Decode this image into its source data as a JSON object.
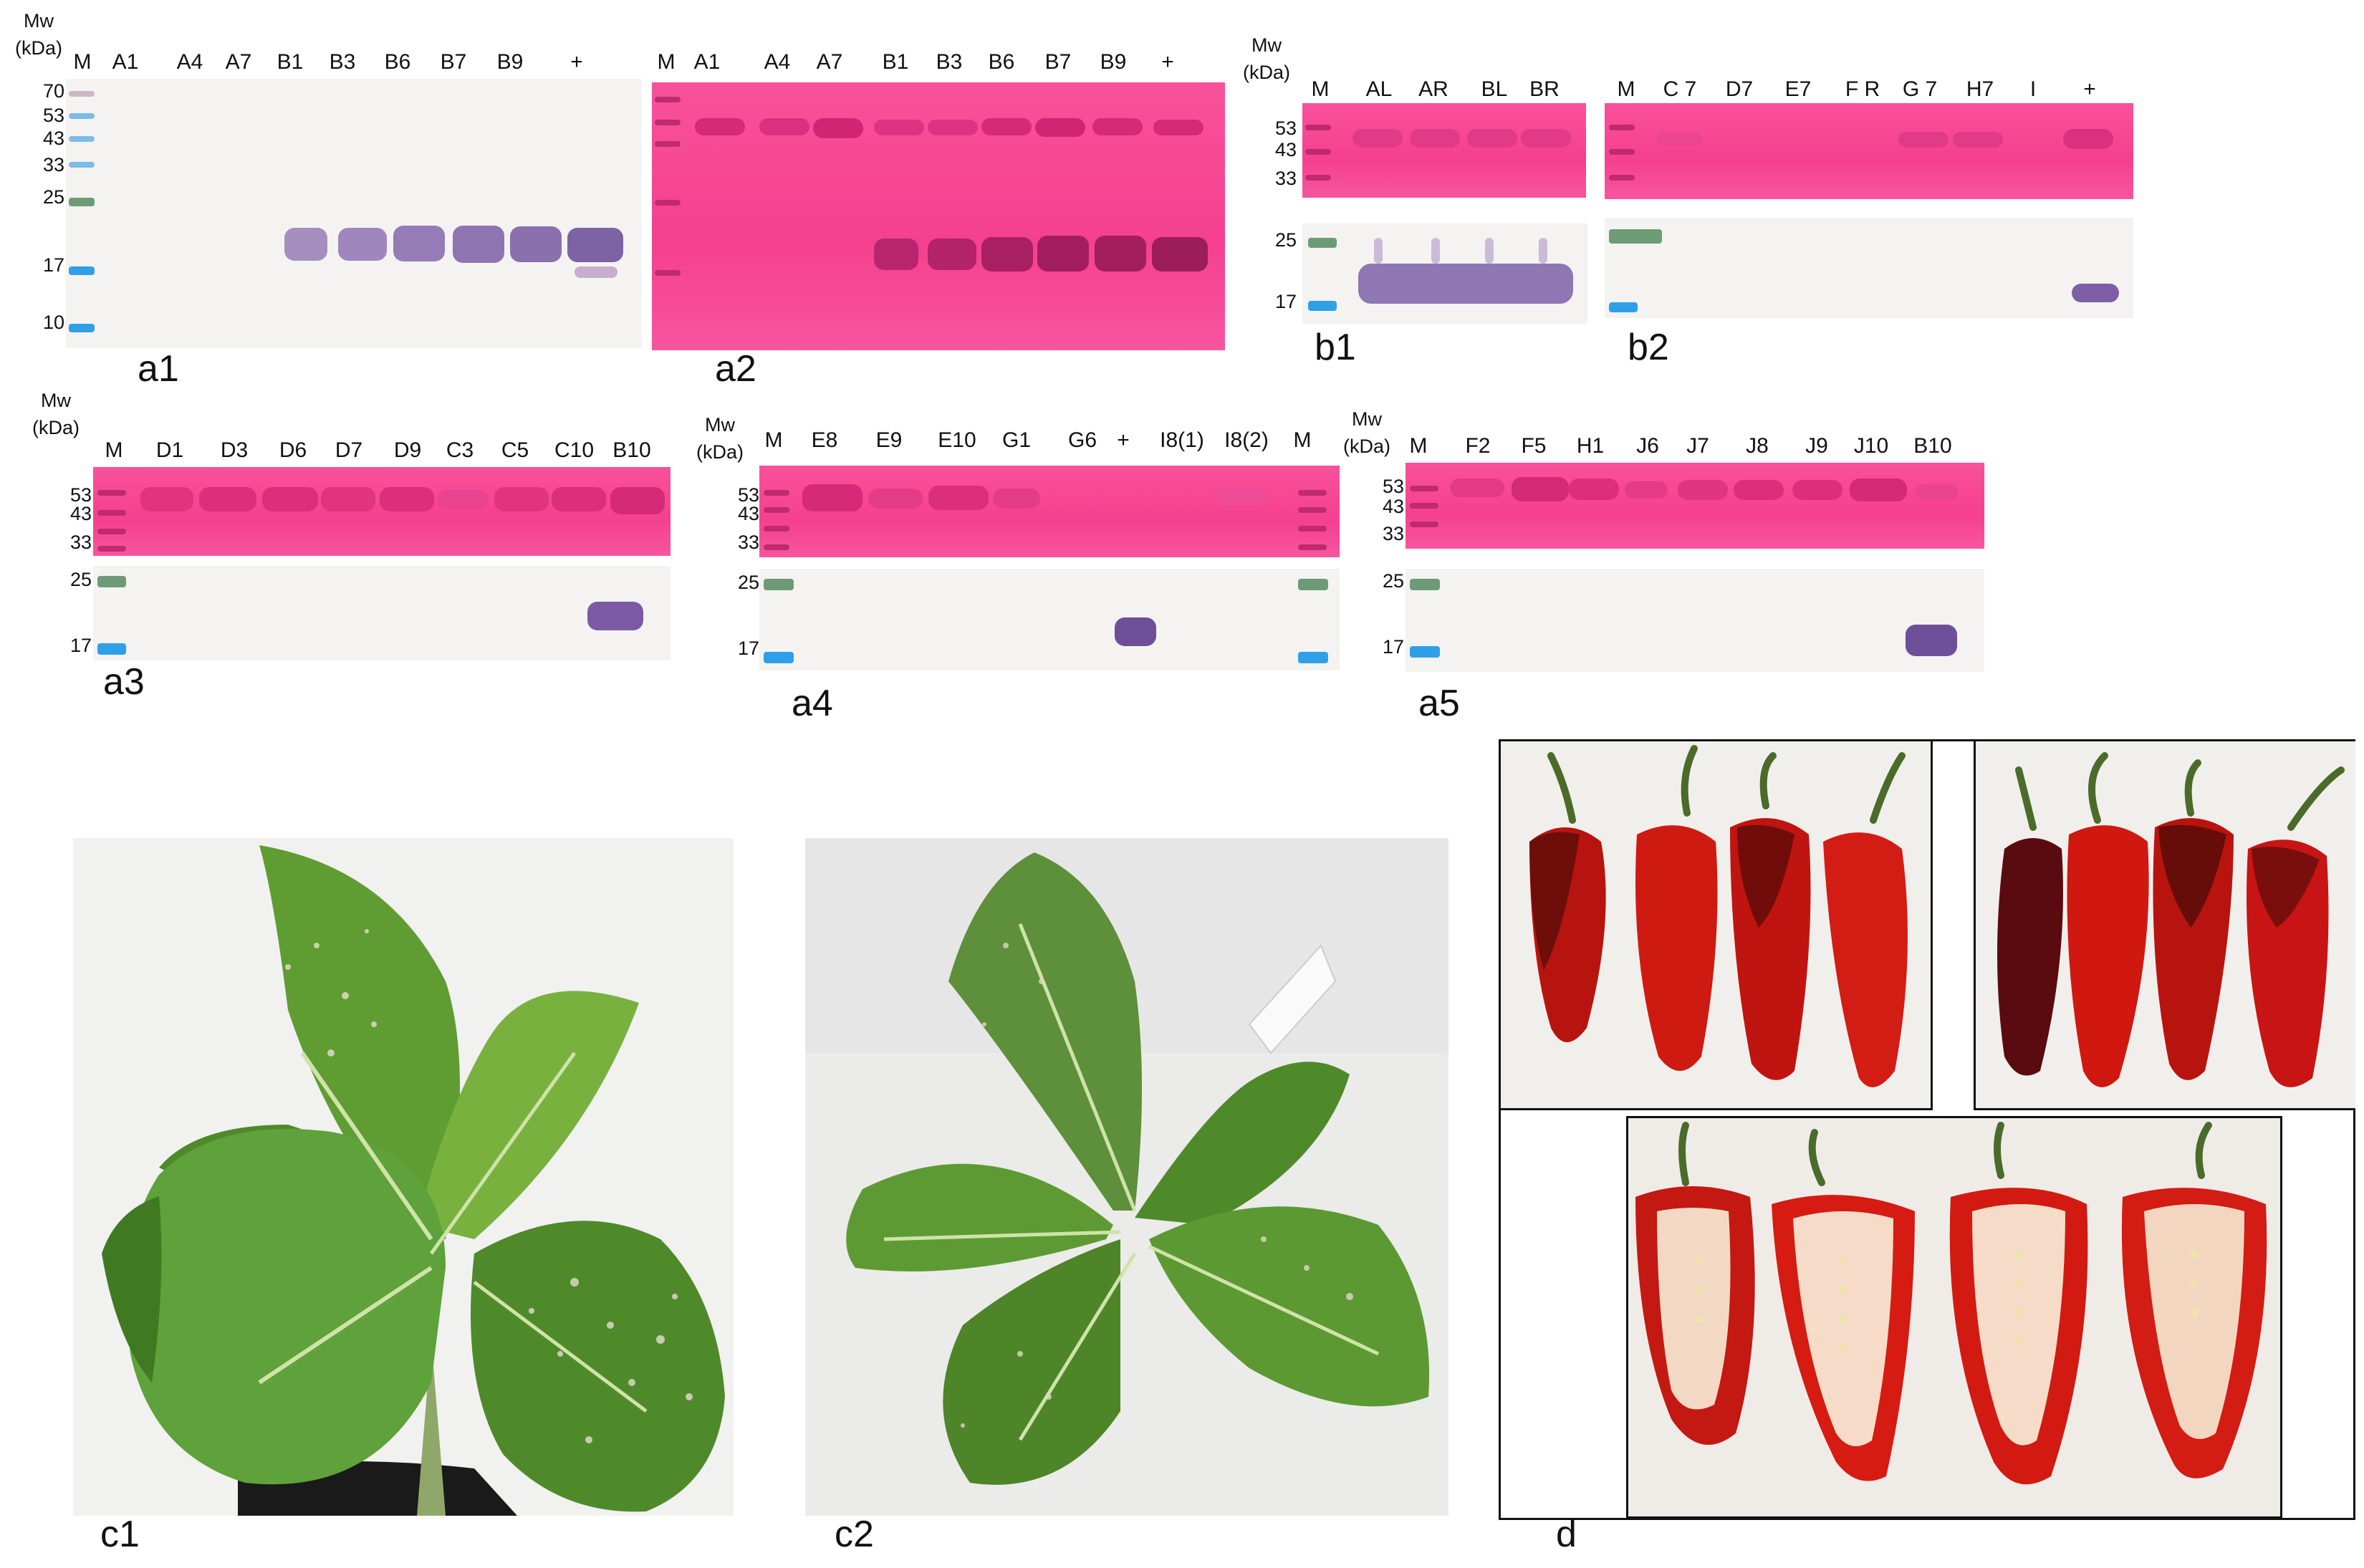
{
  "mw": "Mw",
  "kda": "(kDa)",
  "lanes": {
    "a1": [
      "M",
      "A1",
      "A4",
      "A7",
      "B1",
      "B3",
      "B6",
      "B7",
      "B9",
      "+"
    ],
    "a2": [
      "M",
      "A1",
      "A4",
      "A7",
      "B1",
      "B3",
      "B6",
      "B7",
      "B9",
      "+"
    ],
    "b1": [
      "M",
      "AL",
      "AR",
      "BL",
      "BR"
    ],
    "b2": [
      "M",
      "C 7",
      "D7",
      "E7",
      "F R",
      "G 7",
      "H7",
      "I",
      "+"
    ],
    "a3": [
      "M",
      "D1",
      "D3",
      "D6",
      "D7",
      "D9",
      "C3",
      "C5",
      "C10",
      "B10"
    ],
    "a4": [
      "M",
      "E8",
      "E9",
      "E10",
      "G1",
      "G6",
      "+",
      "I8(1)",
      "I8(2)",
      "M"
    ],
    "a5": [
      "M",
      "F2",
      "F5",
      "H1",
      "J6",
      "J7",
      "J8",
      "J9",
      "J10",
      "B10"
    ]
  },
  "ticks": {
    "a1": [
      "70",
      "53",
      "43",
      "33",
      "25",
      "17",
      "10"
    ],
    "b1_top": [
      "53",
      "43",
      "33"
    ],
    "b1_bottom": [
      "25",
      "17"
    ],
    "small_top": [
      "53",
      "43",
      "33"
    ],
    "small_bottom": [
      "25",
      "17"
    ]
  },
  "panel_labels": {
    "a1": "a1",
    "a2": "a2",
    "b1": "b1",
    "b2": "b2",
    "a3": "a3",
    "a4": "a4",
    "a5": "a5",
    "c1": "c1",
    "c2": "c2",
    "d": "d"
  },
  "colors": {
    "membrane_pink": "#f74793",
    "membrane_white": "#f4f3f1",
    "band_purple": "#7a5f9e",
    "leaf_green": "#4f8a2a",
    "pepper_red": "#c81414"
  }
}
